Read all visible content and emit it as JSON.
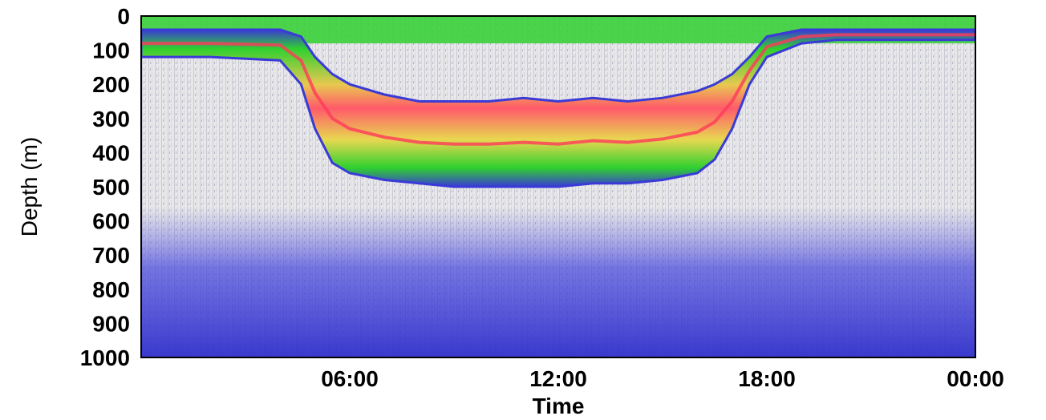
{
  "chart_data": {
    "type": "heatmap",
    "title": "",
    "xlabel": "Time",
    "ylabel": "Depth (m)",
    "x_ticks": [
      "06:00",
      "12:00",
      "18:00",
      "00:00"
    ],
    "x_tick_hours": [
      6,
      12,
      18,
      24
    ],
    "xlim_hours": [
      0,
      24
    ],
    "y_ticks": [
      "0",
      "100",
      "200",
      "300",
      "400",
      "500",
      "600",
      "700",
      "800",
      "900",
      "1000"
    ],
    "y_tick_values": [
      0,
      100,
      200,
      300,
      400,
      500,
      600,
      700,
      800,
      900,
      1000
    ],
    "ylim": [
      0,
      1000
    ],
    "y_inverted": true,
    "grid": false,
    "legend": "none",
    "colormap": [
      "#3a3ad6",
      "#2fd02f",
      "#e8e040",
      "#ff3a5a"
    ],
    "background": "#e6e6e6",
    "series": [
      {
        "x_hours": [
          0,
          2,
          4,
          4.6,
          5,
          5.5,
          6,
          7,
          8,
          9,
          10,
          11,
          12,
          13,
          14,
          15,
          16,
          16.5,
          17,
          17.5,
          18,
          19,
          20,
          22,
          24
        ],
        "upper_depth": [
          40,
          40,
          40,
          60,
          120,
          170,
          200,
          230,
          250,
          250,
          250,
          240,
          250,
          240,
          250,
          240,
          220,
          200,
          170,
          120,
          60,
          40,
          40,
          40,
          40
        ],
        "lower_depth": [
          120,
          120,
          130,
          200,
          330,
          430,
          460,
          480,
          490,
          500,
          500,
          500,
          500,
          490,
          490,
          480,
          460,
          420,
          330,
          200,
          120,
          80,
          70,
          70,
          70
        ]
      }
    ],
    "annotations": []
  }
}
